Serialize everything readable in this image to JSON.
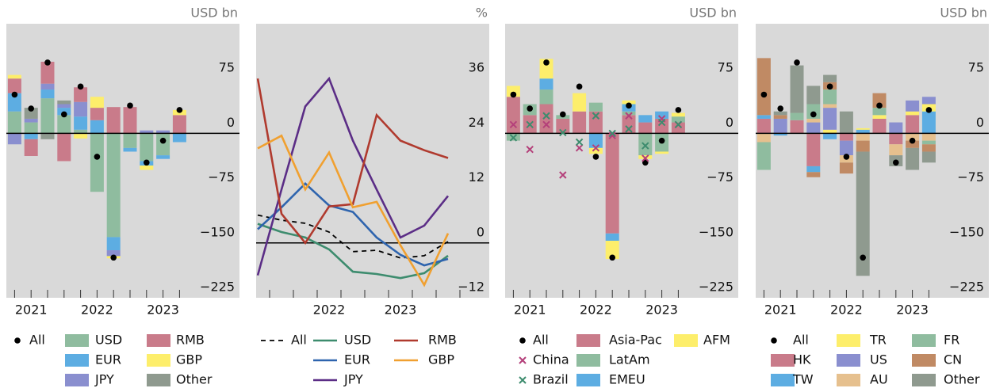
{
  "chart_data": [
    {
      "type": "stacked_bar",
      "unit": "USD bn",
      "categories": [
        null,
        "2021",
        null,
        null,
        null,
        "2022",
        null,
        null,
        null,
        "2023",
        null
      ],
      "ylim": [
        -225,
        150
      ],
      "yticks": [
        75,
        0,
        {
          "value": -75,
          "label": "−75"
        },
        {
          "value": -150,
          "label": "−150"
        },
        {
          "value": -225,
          "label": "−225"
        }
      ],
      "series": [
        {
          "name": "All",
          "marker": "dot",
          "color": "#000000",
          "values": [
            53,
            34,
            97,
            26,
            64,
            -32,
            -170,
            38,
            -40,
            -10,
            32
          ]
        },
        {
          "name": "USD",
          "color": "#8fbc9f",
          "values": [
            30,
            15,
            48,
            25,
            5,
            -80,
            -142,
            -20,
            -38,
            -30,
            0
          ]
        },
        {
          "name": "EUR",
          "color": "#5dade2",
          "values": [
            25,
            -8,
            12,
            10,
            18,
            18,
            -18,
            -5,
            -6,
            -5,
            -12
          ]
        },
        {
          "name": "JPY",
          "color": "#8a8fcf",
          "values": [
            -15,
            5,
            8,
            5,
            20,
            0,
            -8,
            0,
            4,
            4,
            0
          ]
        },
        {
          "name": "RMB",
          "color": "#c97b8a",
          "values": [
            20,
            -23,
            30,
            -38,
            20,
            17,
            36,
            36,
            0,
            0,
            25
          ]
        },
        {
          "name": "GBP",
          "color": "#fdee6b",
          "values": [
            5,
            0,
            0,
            0,
            -7,
            15,
            -3,
            0,
            -6,
            0,
            7
          ]
        },
        {
          "name": "Other",
          "color": "#8f9a8f",
          "values": [
            0,
            15,
            -8,
            5,
            0,
            0,
            0,
            0,
            0,
            0,
            0
          ]
        }
      ]
    },
    {
      "type": "line",
      "unit": "%",
      "categories": [
        null,
        null,
        null,
        "2022",
        null,
        null,
        "2023",
        null,
        null
      ],
      "ylim": [
        -12,
        48
      ],
      "yticks": [
        36,
        24,
        12,
        0,
        {
          "value": -12,
          "label": "−12"
        }
      ],
      "series": [
        {
          "name": "All",
          "color": "#000000",
          "dashed": true,
          "values": [
            6.1,
            5,
            4.3,
            2.4,
            -1.9,
            -1.6,
            -3.3,
            -2.8,
            0.3
          ]
        },
        {
          "name": "USD",
          "color": "#3d8c6e",
          "values": [
            4.2,
            2.4,
            1.2,
            -1.4,
            -6.3,
            -6.8,
            -7.7,
            -6.6,
            -2.8
          ]
        },
        {
          "name": "EUR",
          "color": "#2e64ae",
          "values": [
            3,
            7.8,
            13,
            8.2,
            6.8,
            1.2,
            -2.6,
            -4.9,
            -3.5
          ]
        },
        {
          "name": "JPY",
          "color": "#5b2d86",
          "values": [
            -7.1,
            11.7,
            29.9,
            36,
            22.4,
            11.7,
            1.2,
            3.8,
            10.3
          ]
        },
        {
          "name": "RMB",
          "color": "#b03a2e",
          "values": [
            36,
            6.4,
            0,
            8,
            8.5,
            28,
            22.4,
            20.3,
            18.6
          ]
        },
        {
          "name": "GBP",
          "color": "#f0a030",
          "values": [
            20.7,
            23.5,
            11.7,
            19.8,
            7.8,
            9,
            -0.5,
            -9.2,
            2.1
          ]
        }
      ]
    },
    {
      "type": "stacked_bar",
      "unit": "USD bn",
      "categories": [
        null,
        "2021",
        null,
        null,
        null,
        "2022",
        null,
        null,
        null,
        "2023",
        null
      ],
      "ylim": [
        -225,
        150
      ],
      "yticks": [
        75,
        0,
        {
          "value": -75,
          "label": "−75"
        },
        {
          "value": -150,
          "label": "−150"
        },
        {
          "value": -225,
          "label": "−225"
        }
      ],
      "series": [
        {
          "name": "All",
          "marker": "dot",
          "color": "#000000",
          "values": [
            53,
            34,
            97,
            26,
            64,
            -32,
            -170,
            38,
            -40,
            -10,
            32
          ]
        },
        {
          "name": "China",
          "marker": "cross",
          "color": "#b4407a",
          "values": [
            12,
            -22,
            12,
            -57,
            -20,
            -20,
            -3,
            24,
            -34,
            20,
            12
          ]
        },
        {
          "name": "Brazil",
          "marker": "cross",
          "color": "#3d8c6e",
          "values": [
            -6,
            12,
            24,
            1,
            -12,
            24,
            0,
            6,
            -17,
            15,
            12
          ]
        },
        {
          "name": "Asia-Pac",
          "color": "#c97b8a",
          "values": [
            50,
            25,
            40,
            20,
            30,
            30,
            -137,
            25,
            15,
            20,
            15
          ]
        },
        {
          "name": "LatAm",
          "color": "#8fbc9f",
          "values": [
            -10,
            15,
            20,
            5,
            0,
            12,
            0,
            5,
            -30,
            -25,
            8
          ]
        },
        {
          "name": "EMEU",
          "color": "#5dade2",
          "values": [
            0,
            0,
            15,
            0,
            0,
            -20,
            -10,
            10,
            10,
            10,
            0
          ]
        },
        {
          "name": "AFM",
          "color": "#fdee6b",
          "values": [
            15,
            0,
            27,
            0,
            25,
            -8,
            -25,
            5,
            -5,
            -3,
            5
          ]
        }
      ]
    },
    {
      "type": "stacked_bar",
      "unit": "USD bn",
      "categories": [
        null,
        "2021",
        null,
        null,
        null,
        "2022",
        null,
        null,
        null,
        "2023",
        null
      ],
      "ylim": [
        -225,
        150
      ],
      "yticks": [
        75,
        0,
        {
          "value": -75,
          "label": "−75"
        },
        {
          "value": -150,
          "label": "−150"
        },
        {
          "value": -225,
          "label": "−225"
        }
      ],
      "series": [
        {
          "name": "All",
          "marker": "dot",
          "color": "#000000",
          "values": [
            53,
            34,
            97,
            26,
            64,
            -32,
            -170,
            38,
            -40,
            -10,
            32
          ]
        },
        {
          "name": "HK",
          "color": "#c97b8a",
          "values": [
            20,
            0,
            18,
            -45,
            0,
            -10,
            0,
            20,
            -15,
            25,
            0
          ]
        },
        {
          "name": "TW",
          "color": "#5dade2",
          "values": [
            5,
            -3,
            0,
            -8,
            -8,
            0,
            5,
            0,
            0,
            0,
            30
          ]
        },
        {
          "name": "TR",
          "color": "#fdee6b",
          "values": [
            0,
            0,
            0,
            0,
            5,
            0,
            2,
            5,
            0,
            5,
            10
          ]
        },
        {
          "name": "US",
          "color": "#8a8fcf",
          "values": [
            0,
            20,
            0,
            15,
            30,
            -20,
            0,
            0,
            15,
            15,
            10
          ]
        },
        {
          "name": "AU",
          "color": "#e6c08e",
          "values": [
            -12,
            0,
            0,
            5,
            5,
            -10,
            -10,
            0,
            -15,
            -10,
            -10
          ]
        },
        {
          "name": "FR",
          "color": "#8fbc9f",
          "values": [
            -38,
            0,
            10,
            20,
            20,
            0,
            0,
            10,
            0,
            0,
            -5
          ]
        },
        {
          "name": "CN",
          "color": "#c08a64",
          "values": [
            78,
            5,
            0,
            -7,
            10,
            -15,
            -15,
            20,
            0,
            -10,
            -10
          ]
        },
        {
          "name": "Other",
          "color": "#8f9a8f",
          "values": [
            0,
            5,
            65,
            25,
            10,
            30,
            -170,
            0,
            -15,
            -30,
            -15
          ]
        }
      ]
    }
  ]
}
